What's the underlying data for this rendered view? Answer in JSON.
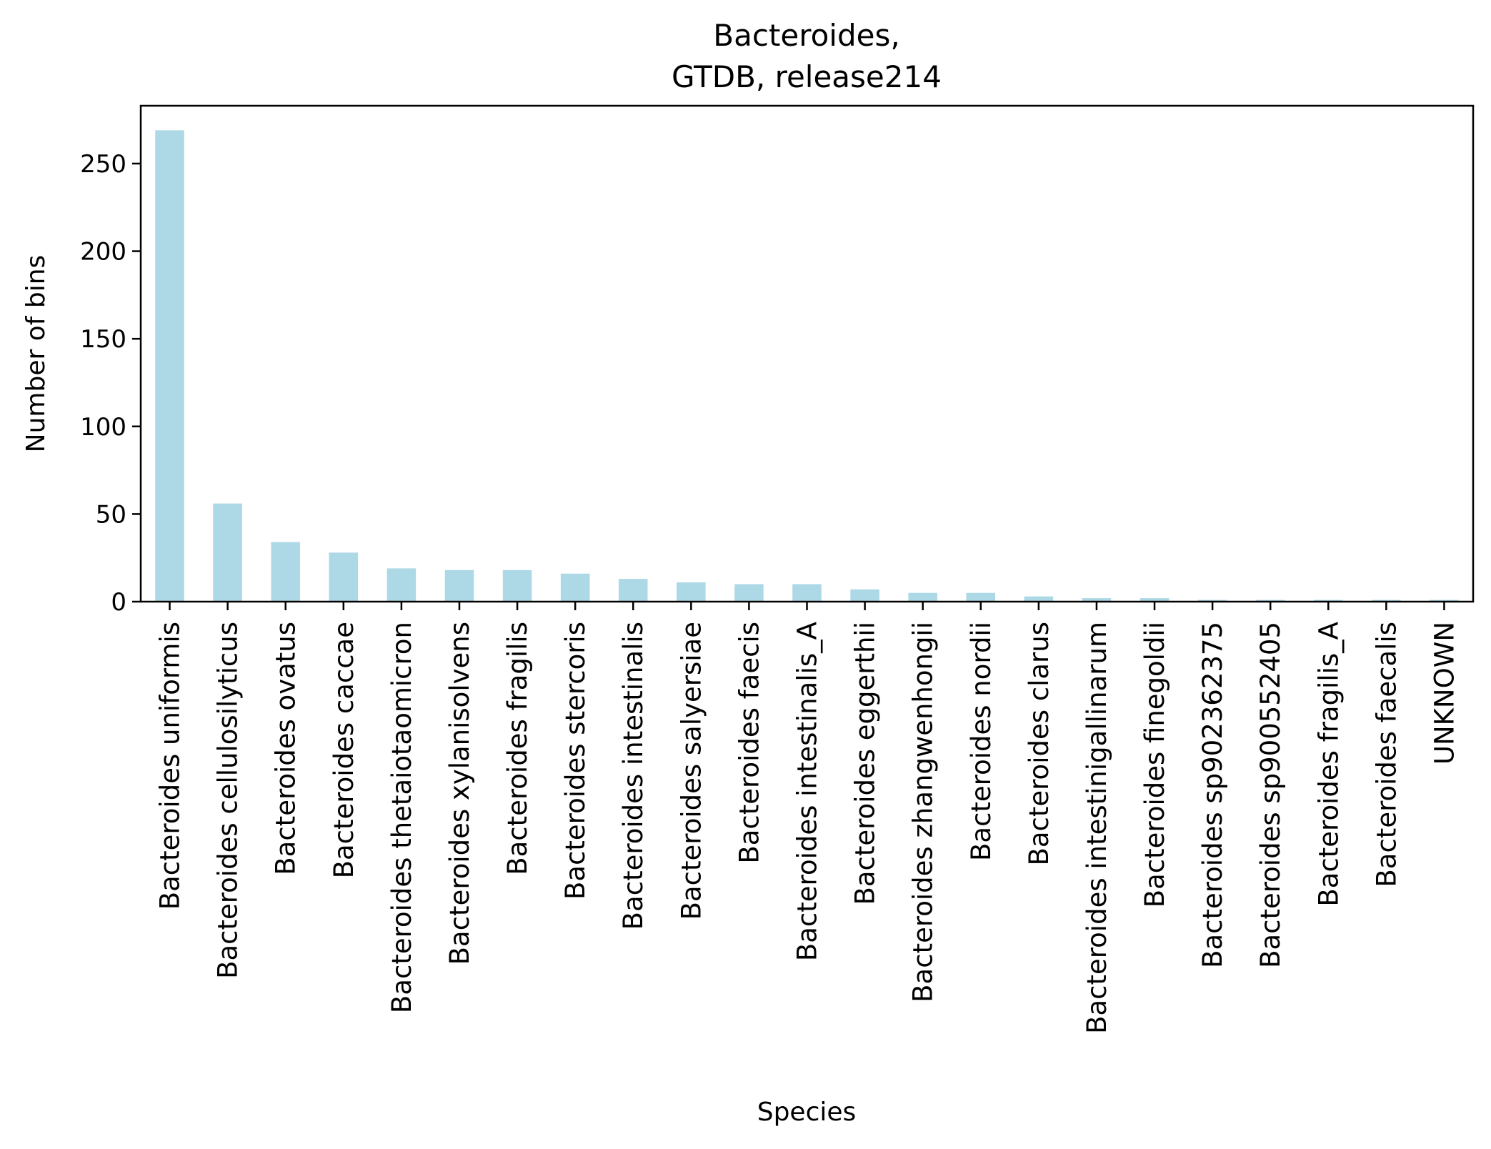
{
  "chart_data": {
    "type": "bar",
    "title_line1": "Bacteroides,",
    "title_line2": "GTDB, release214",
    "xlabel": "Species",
    "ylabel": "Number of bins",
    "ylim": [
      0,
      283
    ],
    "yticks": [
      0,
      50,
      100,
      150,
      200,
      250
    ],
    "grid": false,
    "categories": [
      "Bacteroides uniformis",
      "Bacteroides cellulosilyticus",
      "Bacteroides ovatus",
      "Bacteroides caccae",
      "Bacteroides thetaiotaomicron",
      "Bacteroides xylanisolvens",
      "Bacteroides fragilis",
      "Bacteroides stercoris",
      "Bacteroides intestinalis",
      "Bacteroides salyersiae",
      "Bacteroides faecis",
      "Bacteroides intestinalis_A",
      "Bacteroides eggerthii",
      "Bacteroides zhangwenhongii",
      "Bacteroides nordii",
      "Bacteroides clarus",
      "Bacteroides intestinigallinarum",
      "Bacteroides finegoldii",
      "Bacteroides sp902362375",
      "Bacteroides sp900552405",
      "Bacteroides fragilis_A",
      "Bacteroides faecalis",
      "UNKNOWN"
    ],
    "values": [
      269,
      56,
      34,
      28,
      19,
      18,
      18,
      16,
      13,
      11,
      10,
      10,
      7,
      5,
      5,
      3,
      2,
      2,
      1,
      1,
      1,
      1,
      1
    ],
    "bar_color": "#add8e6"
  }
}
